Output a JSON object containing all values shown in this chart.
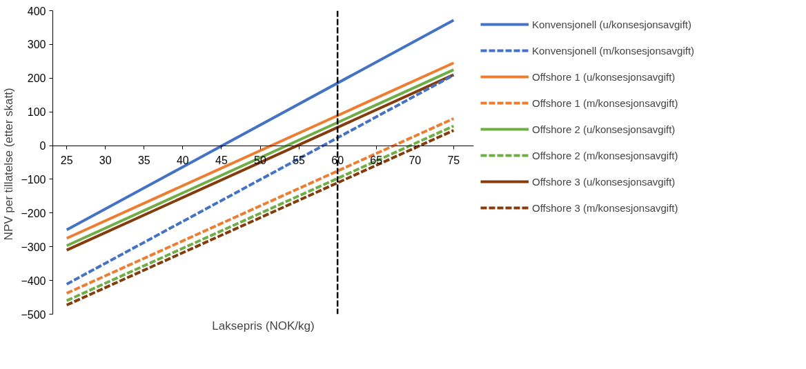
{
  "chart_data": {
    "type": "line",
    "xlabel": "Laksepris (NOK/kg)",
    "ylabel": "NPV  per tillatelse (etter skatt)",
    "x": [
      25,
      75
    ],
    "series": [
      {
        "name": "Konvensjonell (u/konsesjonsavgift)",
        "color": "#4472c4",
        "line_style": "solid",
        "values": [
          -250,
          372
        ]
      },
      {
        "name": "Konvensjonell (m/konsesjonsavgift)",
        "color": "#4472c4",
        "line_style": "dashed",
        "values": [
          -411,
          209
        ]
      },
      {
        "name": "Offshore 1 (u/konsesjonsavgift)",
        "color": "#ed7d31",
        "line_style": "solid",
        "values": [
          -275,
          245
        ]
      },
      {
        "name": "Offshore 1 (m/konsesjonsavgift)",
        "color": "#ed7d31",
        "line_style": "dashed",
        "values": [
          -438,
          80
        ]
      },
      {
        "name": "Offshore 2 (u/konsesjonsavgift)",
        "color": "#70ad47",
        "line_style": "solid",
        "values": [
          -297,
          225
        ]
      },
      {
        "name": "Offshore 2 (m/konsesjonsavgift)",
        "color": "#70ad47",
        "line_style": "dashed",
        "values": [
          -460,
          58
        ]
      },
      {
        "name": "Offshore 3 (u/konsesjonsavgift)",
        "color": "#843c0c",
        "line_style": "solid",
        "values": [
          -310,
          210
        ]
      },
      {
        "name": "Offshore 3 (m/konsesjonsavgift)",
        "color": "#843c0c",
        "line_style": "dashed",
        "values": [
          -473,
          45
        ]
      }
    ],
    "xlim": [
      23.2,
      77.6
    ],
    "xticks": [
      25,
      30,
      35,
      40,
      45,
      50,
      55,
      60,
      65,
      70,
      75
    ],
    "ylim": [
      -500,
      400
    ],
    "yticks": [
      -500,
      -400,
      -300,
      -200,
      -100,
      0,
      100,
      200,
      300,
      400
    ],
    "ref_lines": [
      {
        "axis": "x",
        "value": 60,
        "color": "#000000",
        "line_style": "dashed"
      }
    ],
    "grid": false,
    "legend": "right",
    "marker": "none"
  }
}
